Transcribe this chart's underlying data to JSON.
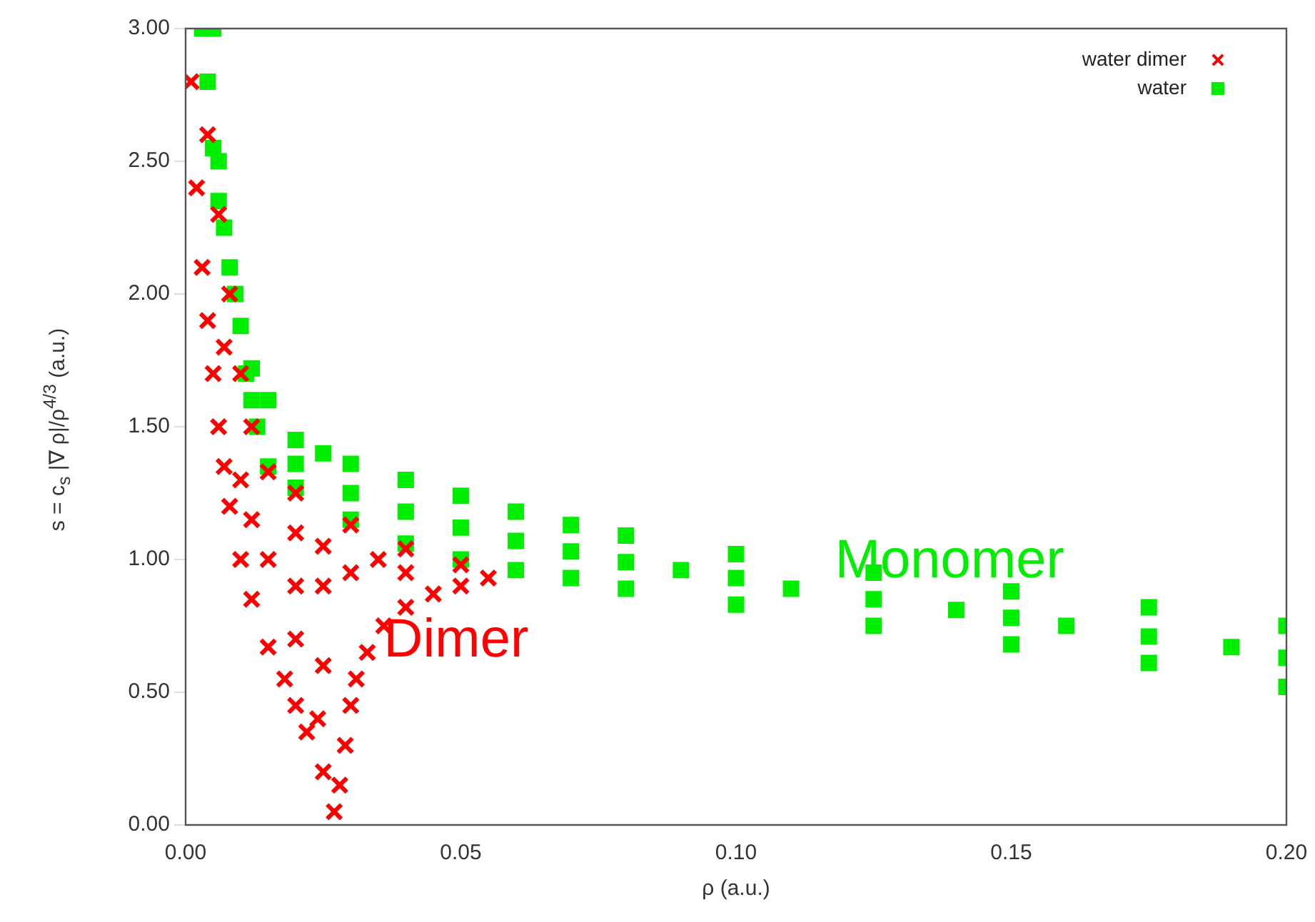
{
  "chart_data": {
    "type": "scatter",
    "xlabel": "ρ (a.u.)",
    "ylabel": "s = c$_{s}$ |∇ ρ|/ρ$^{4/3}$ (a.u.)",
    "xlim": [
      0,
      0.2
    ],
    "xticks": [
      {
        "value": 0,
        "label": "0.00"
      },
      {
        "value": 0.05,
        "label": "0.05"
      },
      {
        "value": 0.1,
        "label": "0.10"
      },
      {
        "value": 0.15,
        "label": "0.15"
      },
      {
        "value": 0.2,
        "label": "0.20"
      }
    ],
    "ylim": [
      0,
      3
    ],
    "yticks": [
      {
        "value": 0,
        "label": "0.00"
      },
      {
        "value": 0.5,
        "label": "0.50"
      },
      {
        "value": 1,
        "label": "1.00"
      },
      {
        "value": 1.5,
        "label": "1.50"
      },
      {
        "value": 2,
        "label": "2.00"
      },
      {
        "value": 2.5,
        "label": "2.50"
      },
      {
        "value": 3,
        "label": "3.00"
      }
    ],
    "grid": false,
    "legend": "top right",
    "series": [
      {
        "name": "water dimer",
        "color": "#ff0000",
        "marker": "cross",
        "x": [
          0.001,
          0.002,
          0.003,
          0.004,
          0.005,
          0.006,
          0.007,
          0.008,
          0.01,
          0.012,
          0.015,
          0.018,
          0.02,
          0.022,
          0.025,
          0.027,
          0.028,
          0.029,
          0.03,
          0.031,
          0.033,
          0.036,
          0.04,
          0.045,
          0.05,
          0.055,
          0.05,
          0.04,
          0.03,
          0.02,
          0.015,
          0.012,
          0.01,
          0.008,
          0.006,
          0.004,
          0.015,
          0.02,
          0.025,
          0.02,
          0.03,
          0.025,
          0.02,
          0.01,
          0.007,
          0.012,
          0.025,
          0.035,
          0.04,
          0.024
        ],
        "values": [
          2.8,
          2.4,
          2.1,
          1.9,
          1.7,
          1.5,
          1.35,
          1.2,
          1.0,
          0.85,
          0.67,
          0.55,
          0.45,
          0.35,
          0.2,
          0.05,
          0.15,
          0.3,
          0.45,
          0.55,
          0.65,
          0.75,
          0.82,
          0.87,
          0.9,
          0.93,
          0.98,
          1.04,
          1.13,
          1.25,
          1.33,
          1.5,
          1.7,
          2.0,
          2.3,
          2.6,
          1.0,
          0.9,
          0.9,
          1.1,
          0.95,
          0.6,
          0.7,
          1.3,
          1.8,
          1.15,
          1.05,
          1.0,
          0.95,
          0.4
        ]
      },
      {
        "name": "water",
        "color": "#00ee00",
        "marker": "square",
        "x": [
          0.003,
          0.004,
          0.005,
          0.006,
          0.008,
          0.01,
          0.012,
          0.015,
          0.02,
          0.025,
          0.03,
          0.04,
          0.05,
          0.06,
          0.07,
          0.08,
          0.1,
          0.125,
          0.15,
          0.175,
          0.2,
          0.005,
          0.006,
          0.007,
          0.009,
          0.011,
          0.013,
          0.015,
          0.02,
          0.03,
          0.04,
          0.05,
          0.06,
          0.07,
          0.08,
          0.1,
          0.125,
          0.15,
          0.175,
          0.2,
          0.012,
          0.02,
          0.03,
          0.04,
          0.05,
          0.06,
          0.07,
          0.08,
          0.09,
          0.1,
          0.11,
          0.125,
          0.14,
          0.15,
          0.16,
          0.175,
          0.19,
          0.2
        ],
        "values": [
          3.0,
          2.8,
          2.55,
          2.35,
          2.1,
          1.88,
          1.72,
          1.6,
          1.45,
          1.4,
          1.36,
          1.3,
          1.24,
          1.18,
          1.13,
          1.09,
          1.02,
          0.95,
          0.88,
          0.82,
          0.75,
          3.0,
          2.5,
          2.25,
          2.0,
          1.7,
          1.5,
          1.35,
          1.27,
          1.15,
          1.06,
          1.0,
          0.96,
          0.93,
          0.89,
          0.83,
          0.75,
          0.68,
          0.61,
          0.52,
          1.6,
          1.36,
          1.25,
          1.18,
          1.12,
          1.07,
          1.03,
          0.99,
          0.96,
          0.93,
          0.89,
          0.85,
          0.81,
          0.78,
          0.75,
          0.71,
          0.67,
          0.63
        ]
      }
    ],
    "annotations": [
      "Dimer",
      "Monomer"
    ]
  }
}
